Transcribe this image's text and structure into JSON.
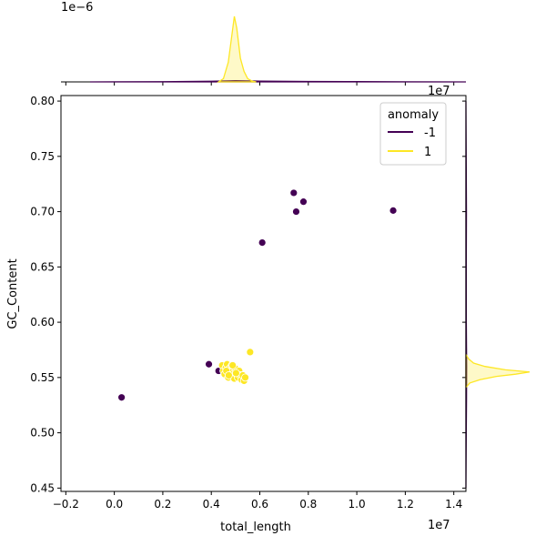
{
  "chart_data": {
    "type": "scatter",
    "kind": "jointplot-with-marginal-kde",
    "xlabel": "total_length",
    "ylabel": "GC_Content",
    "x_offset_label": "1e7",
    "x_scale_exp": 7,
    "top_marginal_offset_label": "1e−6",
    "right_marginal_offset_label": "1e7",
    "xlim": [
      -2200000,
      14500000
    ],
    "ylim": [
      0.447,
      0.805
    ],
    "x_ticks": [
      -2000000,
      0,
      2000000,
      4000000,
      6000000,
      8000000,
      10000000,
      12000000,
      14000000
    ],
    "x_tick_labels": [
      "−0.2",
      "0.0",
      "0.2",
      "0.4",
      "0.6",
      "0.8",
      "1.0",
      "1.2",
      "1.4"
    ],
    "y_ticks": [
      0.45,
      0.5,
      0.55,
      0.6,
      0.65,
      0.7,
      0.75,
      0.8
    ],
    "y_tick_labels": [
      "0.45",
      "0.50",
      "0.55",
      "0.60",
      "0.65",
      "0.70",
      "0.75",
      "0.80"
    ],
    "grid": false,
    "legend": {
      "title": "anomaly",
      "placement": "top-right",
      "entries": [
        {
          "label": "-1",
          "color": "#440154"
        },
        {
          "label": "1",
          "color": "#fde725"
        }
      ]
    },
    "series": [
      {
        "name": "-1",
        "color": "#440154",
        "points": [
          [
            300000,
            0.532
          ],
          [
            3900000,
            0.562
          ],
          [
            4300000,
            0.556
          ],
          [
            6100000,
            0.672
          ],
          [
            7400000,
            0.717
          ],
          [
            7500000,
            0.7
          ],
          [
            7800000,
            0.709
          ],
          [
            11500000,
            0.701
          ]
        ]
      },
      {
        "name": "1",
        "color": "#fde725",
        "points": [
          [
            4450000,
            0.561
          ],
          [
            4500000,
            0.556
          ],
          [
            4550000,
            0.553
          ],
          [
            4600000,
            0.559
          ],
          [
            4650000,
            0.562
          ],
          [
            4700000,
            0.55
          ],
          [
            4750000,
            0.558
          ],
          [
            4800000,
            0.555
          ],
          [
            4850000,
            0.561
          ],
          [
            4900000,
            0.553
          ],
          [
            4950000,
            0.549
          ],
          [
            5000000,
            0.558
          ],
          [
            5050000,
            0.553
          ],
          [
            5100000,
            0.55
          ],
          [
            5150000,
            0.556
          ],
          [
            5200000,
            0.552
          ],
          [
            5250000,
            0.548
          ],
          [
            5300000,
            0.552
          ],
          [
            5350000,
            0.547
          ],
          [
            5400000,
            0.55
          ],
          [
            4620000,
            0.556
          ],
          [
            4880000,
            0.561
          ],
          [
            5020000,
            0.554
          ],
          [
            4720000,
            0.552
          ],
          [
            5600000,
            0.573
          ]
        ]
      }
    ],
    "marginal_x_kde": {
      "series": [
        {
          "name": "-1",
          "color": "#440154",
          "x": [
            -1000000,
            2000000,
            4000000,
            5000000,
            6000000,
            8000000,
            10000000,
            12000000,
            14500000
          ],
          "density": [
            0.0,
            0.003,
            0.01,
            0.018,
            0.012,
            0.007,
            0.004,
            0.002,
            0.0
          ]
        },
        {
          "name": "1",
          "color": "#fde725",
          "x": [
            4300000,
            4500000,
            4700000,
            4850000,
            4950000,
            5050000,
            5200000,
            5350000,
            5500000,
            5700000,
            5850000
          ],
          "density": [
            0.0,
            0.05,
            0.3,
            0.72,
            1.0,
            0.82,
            0.36,
            0.16,
            0.05,
            0.01,
            0.0
          ]
        }
      ]
    },
    "marginal_y_kde": {
      "series": [
        {
          "name": "-1",
          "color": "#440154",
          "y": [
            0.45,
            0.5,
            0.53,
            0.56,
            0.6,
            0.65,
            0.7,
            0.75,
            0.8
          ],
          "density": [
            0.0,
            0.005,
            0.009,
            0.011,
            0.006,
            0.005,
            0.008,
            0.004,
            0.0
          ]
        },
        {
          "name": "1",
          "color": "#fde725",
          "y": [
            0.541,
            0.545,
            0.548,
            0.551,
            0.553,
            0.555,
            0.557,
            0.56,
            0.563,
            0.567,
            0.571
          ],
          "density": [
            0.0,
            0.06,
            0.22,
            0.48,
            0.78,
            1.0,
            0.62,
            0.3,
            0.12,
            0.04,
            0.0
          ]
        }
      ]
    }
  }
}
